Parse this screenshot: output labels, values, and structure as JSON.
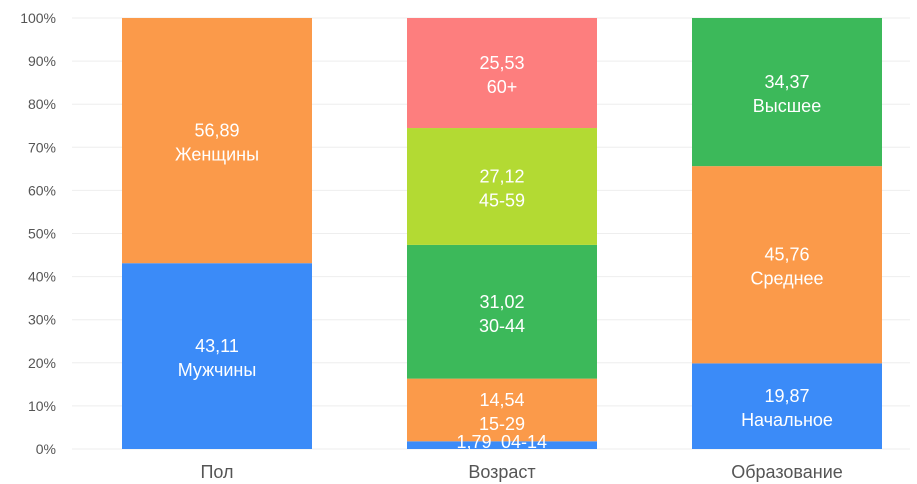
{
  "chart_data": {
    "type": "bar",
    "stacked": true,
    "normalized": true,
    "ylim": [
      0,
      100
    ],
    "yticks": [
      "0%",
      "10%",
      "20%",
      "30%",
      "40%",
      "50%",
      "60%",
      "70%",
      "80%",
      "90%",
      "100%"
    ],
    "grid": true,
    "categories": [
      "Пол",
      "Возраст",
      "Образование"
    ],
    "bars": [
      {
        "category": "Пол",
        "segments": [
          {
            "value": 43.11,
            "value_label": "43,11",
            "label": "Мужчины",
            "color": "#3b8bf8"
          },
          {
            "value": 56.89,
            "value_label": "56,89",
            "label": "Женщины",
            "color": "#fb9a4a"
          }
        ]
      },
      {
        "category": "Возраст",
        "segments": [
          {
            "value": 1.79,
            "value_label": "1,79",
            "label": "04-14",
            "color": "#3b8bf8"
          },
          {
            "value": 14.54,
            "value_label": "14,54",
            "label": "15-29",
            "color": "#fb9a4a"
          },
          {
            "value": 31.02,
            "value_label": "31,02",
            "label": "30-44",
            "color": "#3cb95a"
          },
          {
            "value": 27.12,
            "value_label": "27,12",
            "label": "45-59",
            "color": "#b3da33"
          },
          {
            "value": 25.53,
            "value_label": "25,53",
            "label": "60+",
            "color": "#fd7e7e"
          }
        ]
      },
      {
        "category": "Образование",
        "segments": [
          {
            "value": 19.87,
            "value_label": "19,87",
            "label": "Начальное",
            "color": "#3b8bf8"
          },
          {
            "value": 45.76,
            "value_label": "45,76",
            "label": "Среднее",
            "color": "#fb9a4a"
          },
          {
            "value": 34.37,
            "value_label": "34,37",
            "label": "Высшее",
            "color": "#3cb95a"
          }
        ]
      }
    ]
  }
}
